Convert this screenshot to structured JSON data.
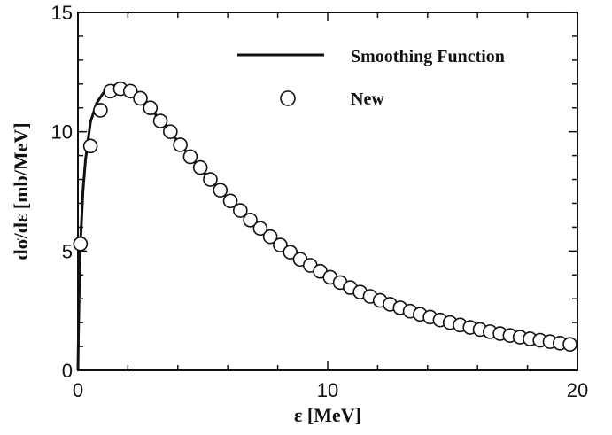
{
  "chart_data": {
    "type": "line",
    "xlabel": "ε [MeV]",
    "ylabel": "dσ/dε [mb/MeV]",
    "xlim": [
      0,
      20
    ],
    "ylim": [
      0,
      15
    ],
    "x_ticks": [
      "0",
      "10",
      "20"
    ],
    "y_ticks": [
      "0",
      "5",
      "10",
      "15"
    ],
    "grid": false,
    "legend_position": "top-right",
    "series": [
      {
        "name": "Smoothing Function",
        "style": "solid-line",
        "color": "#111111",
        "x": [
          0.02,
          0.05,
          0.1,
          0.2,
          0.3,
          0.5,
          0.75,
          1.0,
          1.25,
          1.5,
          1.75,
          2.0,
          2.5,
          3.0,
          3.5,
          4.0,
          4.5,
          5.0,
          5.5,
          6.0,
          6.5,
          7.0,
          7.5,
          8.0,
          8.5,
          9.0,
          9.5,
          10.0,
          10.5,
          11.0,
          11.5,
          12.0,
          12.5,
          13.0,
          13.5,
          14.0,
          14.5,
          15.0,
          15.5,
          16.0,
          16.5,
          17.0,
          17.5,
          18.0,
          18.5,
          19.0,
          19.5,
          20.0
        ],
        "y": [
          1.5,
          3.2,
          5.3,
          7.5,
          8.8,
          10.4,
          11.2,
          11.6,
          11.85,
          11.95,
          11.95,
          11.85,
          11.4,
          10.85,
          10.25,
          9.6,
          8.95,
          8.35,
          7.75,
          7.2,
          6.65,
          6.15,
          5.7,
          5.25,
          4.85,
          4.5,
          4.15,
          3.85,
          3.6,
          3.35,
          3.12,
          2.92,
          2.73,
          2.55,
          2.38,
          2.22,
          2.08,
          1.95,
          1.83,
          1.72,
          1.62,
          1.52,
          1.43,
          1.35,
          1.27,
          1.2,
          1.13,
          1.06
        ]
      },
      {
        "name": "New",
        "style": "open-circle",
        "color": "#111111",
        "x": [
          0.1,
          0.5,
          0.9,
          1.3,
          1.7,
          2.1,
          2.5,
          2.9,
          3.3,
          3.7,
          4.1,
          4.5,
          4.9,
          5.3,
          5.7,
          6.1,
          6.5,
          6.9,
          7.3,
          7.7,
          8.1,
          8.5,
          8.9,
          9.3,
          9.7,
          10.1,
          10.5,
          10.9,
          11.3,
          11.7,
          12.1,
          12.5,
          12.9,
          13.3,
          13.7,
          14.1,
          14.5,
          14.9,
          15.3,
          15.7,
          16.1,
          16.5,
          16.9,
          17.3,
          17.7,
          18.1,
          18.5,
          18.9,
          19.3,
          19.7
        ],
        "y": [
          5.3,
          9.4,
          10.9,
          11.7,
          11.8,
          11.7,
          11.4,
          11.0,
          10.45,
          10.0,
          9.45,
          8.95,
          8.5,
          8.0,
          7.55,
          7.1,
          6.7,
          6.3,
          5.95,
          5.6,
          5.25,
          4.95,
          4.65,
          4.4,
          4.15,
          3.9,
          3.68,
          3.47,
          3.28,
          3.1,
          2.93,
          2.77,
          2.62,
          2.48,
          2.35,
          2.23,
          2.11,
          2.0,
          1.9,
          1.8,
          1.71,
          1.62,
          1.54,
          1.46,
          1.39,
          1.32,
          1.26,
          1.2,
          1.14,
          1.09
        ]
      }
    ]
  }
}
